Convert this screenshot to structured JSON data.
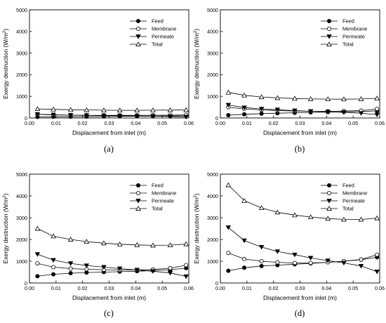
{
  "figure": {
    "panels": [
      "(a)",
      "(b)",
      "(c)",
      "(d)"
    ]
  },
  "chart_data": [
    {
      "type": "line",
      "panel_label": "(a)",
      "xlabel": "Displacement from inlet (m)",
      "ylabel": "Exergy destruction (W/m",
      "ylabel_sup": "2",
      "ylabel_close": ")",
      "xlim": [
        0.0,
        0.06
      ],
      "ylim": [
        0,
        5000
      ],
      "xticks": [
        "0.00",
        "0.01",
        "0.02",
        "0.03",
        "0.04",
        "0.05",
        "0.06"
      ],
      "yticks": [
        "0",
        "1000",
        "2000",
        "3000",
        "4000",
        "5000"
      ],
      "legend_position": "top-right",
      "x": [
        0.003,
        0.009,
        0.0155,
        0.0215,
        0.028,
        0.034,
        0.0405,
        0.0465,
        0.053,
        0.059
      ],
      "series": [
        {
          "name": "Feed",
          "marker": "filled-circle",
          "values": [
            50,
            55,
            60,
            65,
            70,
            75,
            80,
            85,
            90,
            100
          ]
        },
        {
          "name": "Membrane",
          "marker": "open-circle",
          "values": [
            170,
            140,
            130,
            125,
            120,
            120,
            120,
            125,
            130,
            140
          ]
        },
        {
          "name": "Permeate",
          "marker": "filled-triangle-down",
          "values": [
            170,
            150,
            130,
            120,
            110,
            100,
            90,
            80,
            70,
            50
          ]
        },
        {
          "name": "Total",
          "marker": "open-triangle-up",
          "values": [
            420,
            400,
            380,
            370,
            360,
            355,
            355,
            360,
            365,
            370
          ]
        }
      ]
    },
    {
      "type": "line",
      "panel_label": "(b)",
      "xlabel": "Displacement from inlet (m)",
      "ylabel": "Exergy destruction (W/m",
      "ylabel_sup": "2",
      "ylabel_close": ")",
      "xlim": [
        0.0,
        0.06
      ],
      "ylim": [
        0,
        5000
      ],
      "xticks": [
        "0.00",
        "0.01",
        "0.02",
        "0.03",
        "0.04",
        "0.05",
        "0.06"
      ],
      "yticks": [
        "0",
        "1000",
        "2000",
        "3000",
        "4000",
        "5000"
      ],
      "legend_position": "top-right",
      "x": [
        0.003,
        0.009,
        0.0155,
        0.0215,
        0.028,
        0.034,
        0.0405,
        0.0465,
        0.053,
        0.059
      ],
      "series": [
        {
          "name": "Feed",
          "marker": "filled-circle",
          "values": [
            130,
            170,
            200,
            220,
            240,
            255,
            270,
            285,
            300,
            330
          ]
        },
        {
          "name": "Membrane",
          "marker": "open-circle",
          "values": [
            500,
            420,
            370,
            340,
            320,
            310,
            310,
            320,
            340,
            420
          ]
        },
        {
          "name": "Permeate",
          "marker": "filled-triangle-down",
          "values": [
            600,
            480,
            420,
            380,
            340,
            310,
            290,
            260,
            220,
            150
          ]
        },
        {
          "name": "Total",
          "marker": "open-triangle-up",
          "values": [
            1180,
            1050,
            970,
            930,
            900,
            880,
            875,
            870,
            880,
            910
          ]
        }
      ]
    },
    {
      "type": "line",
      "panel_label": "(c)",
      "xlabel": "Displacement from inlet (m)",
      "ylabel": "Exergy destruction (W/m",
      "ylabel_sup": "2",
      "ylabel_close": ")",
      "xlim": [
        0.0,
        0.06
      ],
      "ylim": [
        0,
        5000
      ],
      "xticks": [
        "0.00",
        "0.01",
        "0.02",
        "0.03",
        "0.04",
        "0.05",
        "0.06"
      ],
      "yticks": [
        "0",
        "1000",
        "2000",
        "3000",
        "4000",
        "5000"
      ],
      "legend_position": "top-right",
      "x": [
        0.003,
        0.009,
        0.0155,
        0.0215,
        0.028,
        0.034,
        0.0405,
        0.0465,
        0.053,
        0.059
      ],
      "series": [
        {
          "name": "Feed",
          "marker": "filled-circle",
          "values": [
            310,
            400,
            450,
            480,
            500,
            520,
            540,
            570,
            610,
            680
          ]
        },
        {
          "name": "Membrane",
          "marker": "open-circle",
          "values": [
            900,
            730,
            660,
            630,
            610,
            600,
            600,
            620,
            680,
            820
          ]
        },
        {
          "name": "Permeate",
          "marker": "filled-triangle-down",
          "values": [
            1320,
            1050,
            900,
            800,
            730,
            660,
            600,
            540,
            460,
            300
          ]
        },
        {
          "name": "Total",
          "marker": "open-triangle-up",
          "values": [
            2500,
            2150,
            2000,
            1900,
            1830,
            1780,
            1750,
            1730,
            1740,
            1790
          ]
        }
      ]
    },
    {
      "type": "line",
      "panel_label": "(d)",
      "xlabel": "Displacement from inlet (m)",
      "ylabel": "Exergy destruction (W/m",
      "ylabel_sup": "2",
      "ylabel_close": ")",
      "xlim": [
        0.0,
        0.06
      ],
      "ylim": [
        0,
        5000
      ],
      "xticks": [
        "0.00",
        "0.01",
        "0.02",
        "0.03",
        "0.04",
        "0.05",
        "0.06"
      ],
      "yticks": [
        "0",
        "1000",
        "2000",
        "3000",
        "4000",
        "5000"
      ],
      "legend_position": "top-right",
      "x": [
        0.003,
        0.009,
        0.0155,
        0.0215,
        0.028,
        0.034,
        0.0405,
        0.0465,
        0.053,
        0.059
      ],
      "series": [
        {
          "name": "Feed",
          "marker": "filled-circle",
          "values": [
            560,
            700,
            780,
            820,
            860,
            900,
            950,
            1000,
            1070,
            1180
          ]
        },
        {
          "name": "Membrane",
          "marker": "open-circle",
          "values": [
            1380,
            1100,
            1000,
            950,
            920,
            920,
            950,
            1000,
            1080,
            1300
          ]
        },
        {
          "name": "Permeate",
          "marker": "filled-triangle-down",
          "values": [
            2550,
            1950,
            1650,
            1450,
            1300,
            1150,
            1030,
            920,
            780,
            520
          ]
        },
        {
          "name": "Total",
          "marker": "open-triangle-up",
          "values": [
            4500,
            3780,
            3450,
            3250,
            3120,
            3030,
            2960,
            2920,
            2920,
            2980
          ]
        }
      ]
    }
  ]
}
